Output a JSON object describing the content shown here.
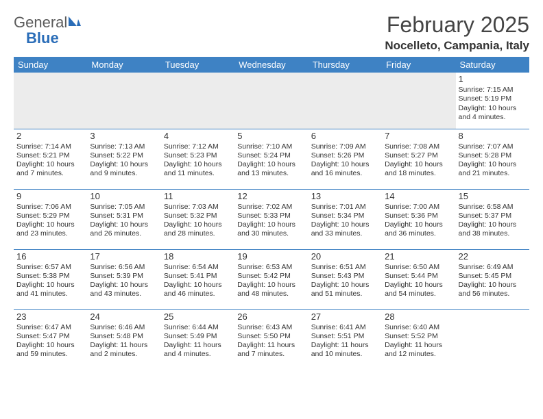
{
  "logo": {
    "word1": "General",
    "word2": "Blue"
  },
  "title": "February 2025",
  "location": "Nocelleto, Campania, Italy",
  "colors": {
    "header_bg": "#3e82c4",
    "header_text": "#ffffff",
    "rule": "#3e82c4",
    "logo_gray": "#5a5a5a",
    "logo_blue": "#2a6db8",
    "first_week_bg": "#ececec"
  },
  "weekdays": [
    "Sunday",
    "Monday",
    "Tuesday",
    "Wednesday",
    "Thursday",
    "Friday",
    "Saturday"
  ],
  "weeks": [
    [
      null,
      null,
      null,
      null,
      null,
      null,
      {
        "n": "1",
        "sr": "Sunrise: 7:15 AM",
        "ss": "Sunset: 5:19 PM",
        "dl": "Daylight: 10 hours and 4 minutes."
      }
    ],
    [
      {
        "n": "2",
        "sr": "Sunrise: 7:14 AM",
        "ss": "Sunset: 5:21 PM",
        "dl": "Daylight: 10 hours and 7 minutes."
      },
      {
        "n": "3",
        "sr": "Sunrise: 7:13 AM",
        "ss": "Sunset: 5:22 PM",
        "dl": "Daylight: 10 hours and 9 minutes."
      },
      {
        "n": "4",
        "sr": "Sunrise: 7:12 AM",
        "ss": "Sunset: 5:23 PM",
        "dl": "Daylight: 10 hours and 11 minutes."
      },
      {
        "n": "5",
        "sr": "Sunrise: 7:10 AM",
        "ss": "Sunset: 5:24 PM",
        "dl": "Daylight: 10 hours and 13 minutes."
      },
      {
        "n": "6",
        "sr": "Sunrise: 7:09 AM",
        "ss": "Sunset: 5:26 PM",
        "dl": "Daylight: 10 hours and 16 minutes."
      },
      {
        "n": "7",
        "sr": "Sunrise: 7:08 AM",
        "ss": "Sunset: 5:27 PM",
        "dl": "Daylight: 10 hours and 18 minutes."
      },
      {
        "n": "8",
        "sr": "Sunrise: 7:07 AM",
        "ss": "Sunset: 5:28 PM",
        "dl": "Daylight: 10 hours and 21 minutes."
      }
    ],
    [
      {
        "n": "9",
        "sr": "Sunrise: 7:06 AM",
        "ss": "Sunset: 5:29 PM",
        "dl": "Daylight: 10 hours and 23 minutes."
      },
      {
        "n": "10",
        "sr": "Sunrise: 7:05 AM",
        "ss": "Sunset: 5:31 PM",
        "dl": "Daylight: 10 hours and 26 minutes."
      },
      {
        "n": "11",
        "sr": "Sunrise: 7:03 AM",
        "ss": "Sunset: 5:32 PM",
        "dl": "Daylight: 10 hours and 28 minutes."
      },
      {
        "n": "12",
        "sr": "Sunrise: 7:02 AM",
        "ss": "Sunset: 5:33 PM",
        "dl": "Daylight: 10 hours and 30 minutes."
      },
      {
        "n": "13",
        "sr": "Sunrise: 7:01 AM",
        "ss": "Sunset: 5:34 PM",
        "dl": "Daylight: 10 hours and 33 minutes."
      },
      {
        "n": "14",
        "sr": "Sunrise: 7:00 AM",
        "ss": "Sunset: 5:36 PM",
        "dl": "Daylight: 10 hours and 36 minutes."
      },
      {
        "n": "15",
        "sr": "Sunrise: 6:58 AM",
        "ss": "Sunset: 5:37 PM",
        "dl": "Daylight: 10 hours and 38 minutes."
      }
    ],
    [
      {
        "n": "16",
        "sr": "Sunrise: 6:57 AM",
        "ss": "Sunset: 5:38 PM",
        "dl": "Daylight: 10 hours and 41 minutes."
      },
      {
        "n": "17",
        "sr": "Sunrise: 6:56 AM",
        "ss": "Sunset: 5:39 PM",
        "dl": "Daylight: 10 hours and 43 minutes."
      },
      {
        "n": "18",
        "sr": "Sunrise: 6:54 AM",
        "ss": "Sunset: 5:41 PM",
        "dl": "Daylight: 10 hours and 46 minutes."
      },
      {
        "n": "19",
        "sr": "Sunrise: 6:53 AM",
        "ss": "Sunset: 5:42 PM",
        "dl": "Daylight: 10 hours and 48 minutes."
      },
      {
        "n": "20",
        "sr": "Sunrise: 6:51 AM",
        "ss": "Sunset: 5:43 PM",
        "dl": "Daylight: 10 hours and 51 minutes."
      },
      {
        "n": "21",
        "sr": "Sunrise: 6:50 AM",
        "ss": "Sunset: 5:44 PM",
        "dl": "Daylight: 10 hours and 54 minutes."
      },
      {
        "n": "22",
        "sr": "Sunrise: 6:49 AM",
        "ss": "Sunset: 5:45 PM",
        "dl": "Daylight: 10 hours and 56 minutes."
      }
    ],
    [
      {
        "n": "23",
        "sr": "Sunrise: 6:47 AM",
        "ss": "Sunset: 5:47 PM",
        "dl": "Daylight: 10 hours and 59 minutes."
      },
      {
        "n": "24",
        "sr": "Sunrise: 6:46 AM",
        "ss": "Sunset: 5:48 PM",
        "dl": "Daylight: 11 hours and 2 minutes."
      },
      {
        "n": "25",
        "sr": "Sunrise: 6:44 AM",
        "ss": "Sunset: 5:49 PM",
        "dl": "Daylight: 11 hours and 4 minutes."
      },
      {
        "n": "26",
        "sr": "Sunrise: 6:43 AM",
        "ss": "Sunset: 5:50 PM",
        "dl": "Daylight: 11 hours and 7 minutes."
      },
      {
        "n": "27",
        "sr": "Sunrise: 6:41 AM",
        "ss": "Sunset: 5:51 PM",
        "dl": "Daylight: 11 hours and 10 minutes."
      },
      {
        "n": "28",
        "sr": "Sunrise: 6:40 AM",
        "ss": "Sunset: 5:52 PM",
        "dl": "Daylight: 11 hours and 12 minutes."
      },
      null
    ]
  ]
}
